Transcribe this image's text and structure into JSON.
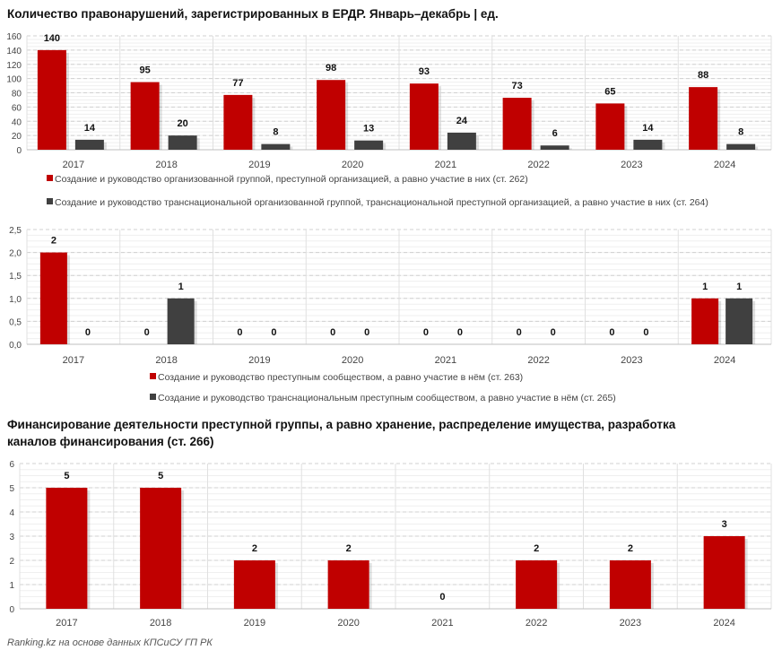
{
  "colors": {
    "red": "#c00000",
    "dark": "#404040",
    "grid": "#d9d9d9"
  },
  "footer": "Ranking.kz на основе данных КПСиСУ ГП РК",
  "chart_data": [
    {
      "type": "bar",
      "title": "Количество правонарушений, зарегистрированных в ЕРДР. Январь–декабрь | ед.",
      "categories": [
        "2017",
        "2018",
        "2019",
        "2020",
        "2021",
        "2022",
        "2023",
        "2024"
      ],
      "ylim": [
        0,
        160
      ],
      "yticks": [
        "0",
        "20",
        "40",
        "60",
        "80",
        "100",
        "120",
        "140",
        "160"
      ],
      "grid": true,
      "legend_position": "bottom",
      "series": [
        {
          "name": "Создание и руководство организованной группой, преступной организацией, а равно участие в них (ст. 262)",
          "color": "#c00000",
          "values": [
            140,
            95,
            77,
            98,
            93,
            73,
            65,
            88
          ]
        },
        {
          "name": "Создание и руководство транснациональной организованной группой, транснациональной преступной организацией, а равно участие в них (ст. 264)",
          "color": "#404040",
          "values": [
            14,
            20,
            8,
            13,
            24,
            6,
            14,
            8
          ]
        }
      ]
    },
    {
      "type": "bar",
      "title": "",
      "categories": [
        "2017",
        "2018",
        "2019",
        "2020",
        "2021",
        "2022",
        "2023",
        "2024"
      ],
      "ylim": [
        0,
        2.5
      ],
      "yticks": [
        "0,0",
        "0,5",
        "1,0",
        "1,5",
        "2,0",
        "2,5"
      ],
      "grid": true,
      "legend_position": "bottom",
      "series": [
        {
          "name": "Создание и руководство преступным сообществом, а равно участие в нём (ст. 263)",
          "color": "#c00000",
          "values": [
            2,
            0,
            0,
            0,
            0,
            0,
            0,
            1
          ]
        },
        {
          "name": "Создание и руководство транснациональным преступным сообществом, а равно участие в нём (ст. 265)",
          "color": "#404040",
          "values": [
            0,
            1,
            0,
            0,
            0,
            0,
            0,
            1
          ]
        }
      ]
    },
    {
      "type": "bar",
      "title": "Финансирование деятельности преступной группы, а равно хранение, распределение имущества, разработка каналов финансирования (ст. 266)",
      "categories": [
        "2017",
        "2018",
        "2019",
        "2020",
        "2021",
        "2022",
        "2023",
        "2024"
      ],
      "ylim": [
        0,
        6
      ],
      "yticks": [
        "0",
        "1",
        "2",
        "3",
        "4",
        "5",
        "6"
      ],
      "grid": true,
      "series": [
        {
          "color": "#c00000",
          "values": [
            5,
            5,
            2,
            2,
            0,
            2,
            2,
            3
          ]
        }
      ]
    }
  ]
}
